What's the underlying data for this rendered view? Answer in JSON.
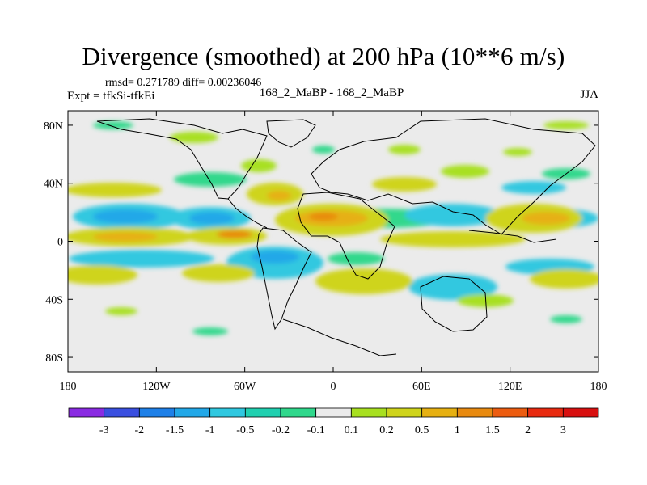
{
  "header": {
    "title": "Divergence (smoothed) at 200 hPa (10**6 m/s)",
    "stats": "rmsd= 0.271789 diff= 0.00236046",
    "experiment": "Expt = tfkSi-tfkEi",
    "case": "168_2_MaBP - 168_2_MaBP",
    "season": "JJA"
  },
  "chart_data": {
    "type": "heatmap",
    "title": "Divergence (smoothed) at 200 hPa (10**6 m/s)",
    "xlabel": "",
    "ylabel": "",
    "xlim": [
      -180,
      180
    ],
    "ylim": [
      -90,
      90
    ],
    "x_ticks": [
      {
        "value": -180,
        "label": "180"
      },
      {
        "value": -120,
        "label": "120W"
      },
      {
        "value": -60,
        "label": "60W"
      },
      {
        "value": 0,
        "label": "0"
      },
      {
        "value": 60,
        "label": "60E"
      },
      {
        "value": 120,
        "label": "120E"
      },
      {
        "value": 180,
        "label": "180"
      }
    ],
    "y_ticks": [
      {
        "value": 80,
        "label": "80N"
      },
      {
        "value": 40,
        "label": "40N"
      },
      {
        "value": 0,
        "label": "0"
      },
      {
        "value": -40,
        "label": "40S"
      },
      {
        "value": -80,
        "label": "80S"
      }
    ],
    "colorbar": {
      "labels": [
        "-3",
        "-2",
        "-1.5",
        "-1",
        "-0.5",
        "-0.2",
        "-0.1",
        "0.1",
        "0.2",
        "0.5",
        "1",
        "1.5",
        "2",
        "3"
      ],
      "colors": [
        "#8a2be2",
        "#3a4fe0",
        "#1e80e8",
        "#22a8e8",
        "#30c8e0",
        "#20d0b0",
        "#30d88c",
        "#ebebeb",
        "#a8e020",
        "#cfd41c",
        "#e6b012",
        "#e88a10",
        "#ec5c10",
        "#e82a10",
        "#d81010"
      ]
    },
    "anomaly_bands": [
      {
        "lat": 18,
        "amplitude": -0.9
      },
      {
        "lat": 2,
        "amplitude": 1.1
      },
      {
        "lat": -13,
        "amplitude": -0.6
      },
      {
        "lat": -30,
        "amplitude": 0.5
      },
      {
        "lat": 45,
        "amplitude": 0.3
      },
      {
        "lat": 72,
        "amplitude": 0.25
      }
    ]
  }
}
